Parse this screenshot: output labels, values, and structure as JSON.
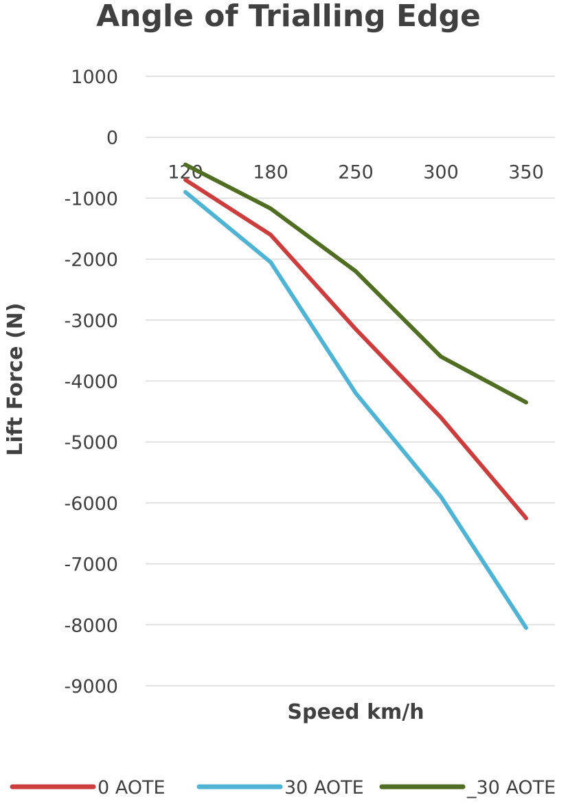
{
  "chart_data": {
    "type": "line",
    "title": "Angle of Trialling Edge",
    "xlabel": "Speed km/h",
    "ylabel": "Lift Force (N)",
    "categories": [
      "120",
      "180",
      "250",
      "300",
      "350"
    ],
    "ylim": [
      -9000,
      1000
    ],
    "yticks": [
      1000,
      0,
      -1000,
      -2000,
      -3000,
      -4000,
      -5000,
      -6000,
      -7000,
      -8000,
      -9000
    ],
    "grid": true,
    "legend_position": "bottom",
    "series": [
      {
        "name": "0 AOTE",
        "color": "#cc3e3e",
        "values": [
          -700,
          -1600,
          -3150,
          -4600,
          -6250
        ]
      },
      {
        "name": "30 AOTE",
        "color": "#4fb4d4",
        "values": [
          -900,
          -2050,
          -4200,
          -5900,
          -8050
        ]
      },
      {
        "name": "_30 AOTE",
        "color": "#4f6e22",
        "values": [
          -450,
          -1170,
          -2200,
          -3600,
          -4350
        ]
      }
    ]
  }
}
